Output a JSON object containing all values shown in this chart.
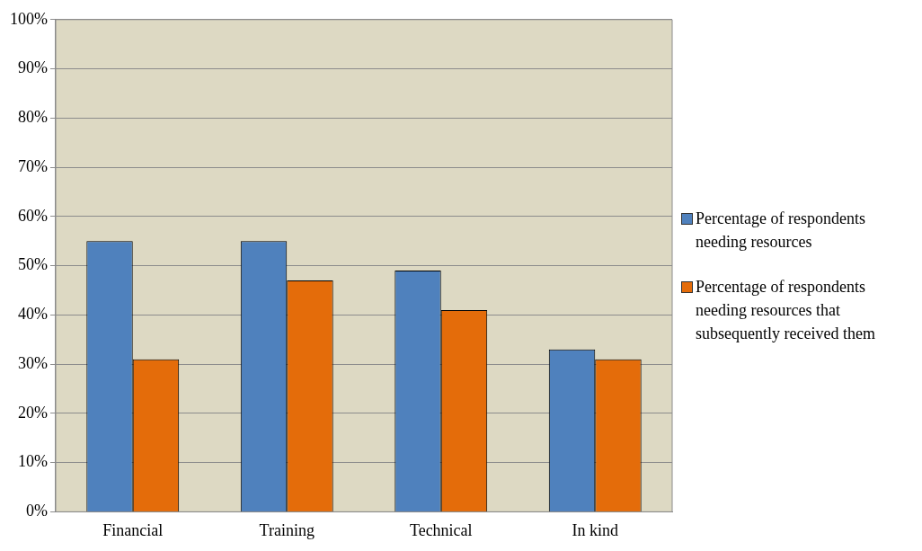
{
  "chart_data": {
    "type": "bar",
    "categories": [
      "Financial",
      "Training",
      "Technical",
      "In kind"
    ],
    "series": [
      {
        "name": "Percentage of respondents needing resources",
        "color": "#4f81bd",
        "values": [
          55,
          55,
          49,
          33
        ]
      },
      {
        "name": "Percentage of respondents needing resources that subsequently received them",
        "color": "#e46c0a",
        "values": [
          31,
          47,
          41,
          31
        ]
      }
    ],
    "ylim": [
      0,
      100
    ],
    "yticks": [
      {
        "value": 0,
        "label": "0%"
      },
      {
        "value": 10,
        "label": "10%"
      },
      {
        "value": 20,
        "label": "20%"
      },
      {
        "value": 30,
        "label": "30%"
      },
      {
        "value": 40,
        "label": "40%"
      },
      {
        "value": 50,
        "label": "50%"
      },
      {
        "value": 60,
        "label": "60%"
      },
      {
        "value": 70,
        "label": "70%"
      },
      {
        "value": 80,
        "label": "80%"
      },
      {
        "value": 90,
        "label": "90%"
      },
      {
        "value": 100,
        "label": "100%"
      }
    ],
    "grid": "y",
    "legend": "right"
  }
}
